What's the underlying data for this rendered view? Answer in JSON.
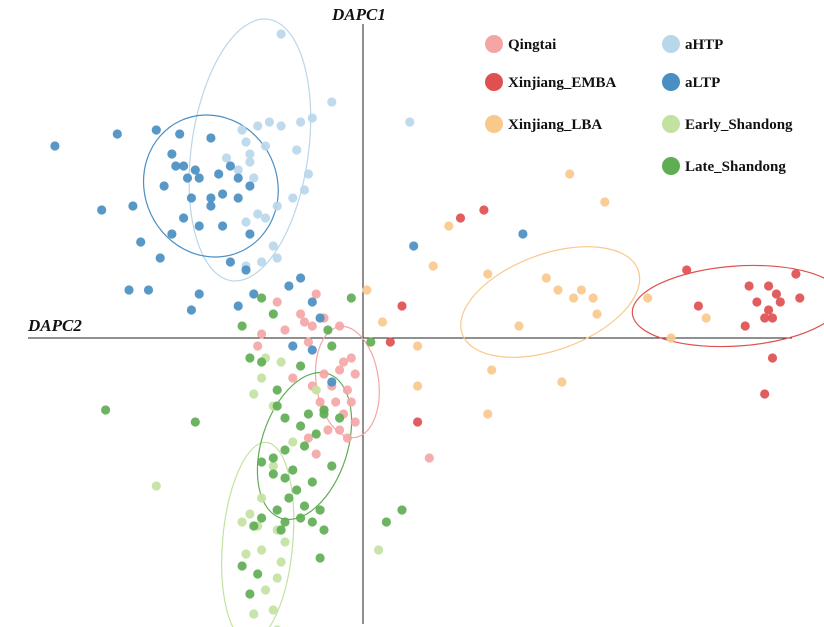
{
  "chart_data": {
    "type": "scatter",
    "xlabel": "DAPC2",
    "ylabel": "DAPC1",
    "xlim": [
      -10,
      12
    ],
    "ylim": [
      -8,
      8
    ],
    "grid": false,
    "legend_placement": "top-right",
    "series": [
      {
        "name": "Qingtai",
        "color": "#f4a6a6",
        "ellipse": {
          "cx": -0.4,
          "cy": -1.1,
          "rx": 0.8,
          "ry": 1.4,
          "angle": -8
        },
        "points": [
          [
            -2.2,
            0.9
          ],
          [
            -1.2,
            1.1
          ],
          [
            -1.6,
            0.6
          ],
          [
            -1.5,
            0.4
          ],
          [
            -1.3,
            0.3
          ],
          [
            -2.0,
            0.2
          ],
          [
            -1.0,
            0.5
          ],
          [
            -0.6,
            0.3
          ],
          [
            -2.7,
            -0.2
          ],
          [
            -1.4,
            -0.1
          ],
          [
            -0.3,
            -0.5
          ],
          [
            -0.5,
            -0.6
          ],
          [
            -0.6,
            -0.8
          ],
          [
            -1.0,
            -0.9
          ],
          [
            -1.3,
            -1.2
          ],
          [
            -0.8,
            -1.2
          ],
          [
            -0.4,
            -1.3
          ],
          [
            -0.3,
            -1.6
          ],
          [
            -0.7,
            -1.6
          ],
          [
            -1.0,
            -1.8
          ],
          [
            -0.5,
            -1.9
          ],
          [
            -0.2,
            -2.1
          ],
          [
            -0.6,
            -2.3
          ],
          [
            -0.9,
            -2.3
          ],
          [
            -1.4,
            -2.5
          ],
          [
            -0.4,
            -2.5
          ],
          [
            -2.6,
            0.1
          ],
          [
            -1.8,
            -1.0
          ],
          [
            -1.1,
            -1.6
          ],
          [
            1.7,
            -3.0
          ],
          [
            -0.2,
            -0.9
          ],
          [
            -1.2,
            -2.9
          ]
        ]
      },
      {
        "name": "Xinjiang_EMBA",
        "color": "#e05050",
        "ellipse": {
          "cx": 9.6,
          "cy": 0.8,
          "rx": 2.7,
          "ry": 1.0,
          "angle": -4
        },
        "points": [
          [
            2.5,
            3.0
          ],
          [
            3.1,
            3.2
          ],
          [
            1.0,
            0.8
          ],
          [
            8.3,
            1.7
          ],
          [
            9.9,
            1.3
          ],
          [
            10.4,
            1.3
          ],
          [
            10.6,
            1.1
          ],
          [
            10.1,
            0.9
          ],
          [
            10.7,
            0.9
          ],
          [
            10.4,
            0.7
          ],
          [
            10.3,
            0.5
          ],
          [
            10.5,
            0.5
          ],
          [
            8.6,
            0.8
          ],
          [
            9.8,
            0.3
          ],
          [
            11.1,
            1.6
          ],
          [
            11.2,
            1.0
          ],
          [
            10.5,
            -0.5
          ],
          [
            10.3,
            -1.4
          ],
          [
            1.4,
            -2.1
          ],
          [
            0.7,
            -0.1
          ]
        ]
      },
      {
        "name": "Xinjiang_LBA",
        "color": "#f9c98c",
        "ellipse": {
          "cx": 4.8,
          "cy": 0.9,
          "rx": 2.4,
          "ry": 1.2,
          "angle": -20
        },
        "points": [
          [
            5.3,
            4.1
          ],
          [
            6.2,
            3.4
          ],
          [
            2.2,
            2.8
          ],
          [
            1.8,
            1.8
          ],
          [
            3.2,
            1.6
          ],
          [
            4.7,
            1.5
          ],
          [
            5.0,
            1.2
          ],
          [
            5.6,
            1.2
          ],
          [
            5.9,
            1.0
          ],
          [
            5.4,
            1.0
          ],
          [
            6.0,
            0.6
          ],
          [
            4.0,
            0.3
          ],
          [
            7.3,
            1.0
          ],
          [
            8.8,
            0.5
          ],
          [
            7.9,
            0.0
          ],
          [
            0.1,
            1.2
          ],
          [
            1.4,
            -0.2
          ],
          [
            3.3,
            -0.8
          ],
          [
            5.1,
            -1.1
          ],
          [
            3.2,
            -1.9
          ],
          [
            1.4,
            -1.2
          ],
          [
            0.5,
            0.4
          ]
        ]
      },
      {
        "name": "aHTP",
        "color": "#b9d7ea",
        "ellipse": {
          "cx": -2.9,
          "cy": 4.7,
          "rx": 1.5,
          "ry": 3.3,
          "angle": 8
        },
        "points": [
          [
            -2.1,
            7.6
          ],
          [
            -0.8,
            5.9
          ],
          [
            -1.3,
            5.5
          ],
          [
            -1.6,
            5.4
          ],
          [
            -2.7,
            5.3
          ],
          [
            -2.4,
            5.4
          ],
          [
            -2.1,
            5.3
          ],
          [
            -3.1,
            5.2
          ],
          [
            -3.0,
            4.9
          ],
          [
            -2.5,
            4.8
          ],
          [
            -1.7,
            4.7
          ],
          [
            -3.5,
            4.5
          ],
          [
            -2.9,
            4.4
          ],
          [
            -3.2,
            4.2
          ],
          [
            -2.8,
            4.0
          ],
          [
            -1.4,
            4.1
          ],
          [
            -1.5,
            3.7
          ],
          [
            -1.8,
            3.5
          ],
          [
            -2.2,
            3.3
          ],
          [
            -2.7,
            3.1
          ],
          [
            -2.5,
            3.0
          ],
          [
            -3.0,
            2.9
          ],
          [
            -2.3,
            2.3
          ],
          [
            -2.2,
            2.0
          ],
          [
            -2.6,
            1.9
          ],
          [
            -3.0,
            1.8
          ],
          [
            1.2,
            5.4
          ],
          [
            -2.9,
            4.6
          ]
        ]
      },
      {
        "name": "aLTP",
        "color": "#4a8fc2",
        "ellipse": {
          "cx": -3.9,
          "cy": 3.8,
          "rx": 1.7,
          "ry": 1.8,
          "angle": -25
        },
        "points": [
          [
            -7.9,
            4.8
          ],
          [
            -6.3,
            5.1
          ],
          [
            -5.3,
            5.2
          ],
          [
            -4.7,
            5.1
          ],
          [
            -3.9,
            5.0
          ],
          [
            -4.9,
            4.6
          ],
          [
            -4.6,
            4.3
          ],
          [
            -4.3,
            4.2
          ],
          [
            -4.8,
            4.3
          ],
          [
            -4.5,
            4.0
          ],
          [
            -4.2,
            4.0
          ],
          [
            -3.7,
            4.1
          ],
          [
            -3.4,
            4.3
          ],
          [
            -3.2,
            4.0
          ],
          [
            -2.9,
            3.8
          ],
          [
            -3.6,
            3.6
          ],
          [
            -3.2,
            3.5
          ],
          [
            -3.9,
            3.5
          ],
          [
            -4.4,
            3.5
          ],
          [
            -5.1,
            3.8
          ],
          [
            -5.9,
            3.3
          ],
          [
            -6.7,
            3.2
          ],
          [
            -3.9,
            3.3
          ],
          [
            -4.6,
            3.0
          ],
          [
            -4.2,
            2.8
          ],
          [
            -2.9,
            2.6
          ],
          [
            -5.7,
            2.4
          ],
          [
            -4.9,
            2.6
          ],
          [
            -3.6,
            2.8
          ],
          [
            -5.2,
            2.0
          ],
          [
            -3.4,
            1.9
          ],
          [
            -3.0,
            1.7
          ],
          [
            -1.6,
            1.5
          ],
          [
            -1.9,
            1.3
          ],
          [
            -6.0,
            1.2
          ],
          [
            -5.5,
            1.2
          ],
          [
            -4.2,
            1.1
          ],
          [
            -2.8,
            1.1
          ],
          [
            -3.2,
            0.8
          ],
          [
            -4.4,
            0.7
          ],
          [
            -1.3,
            0.9
          ],
          [
            -1.1,
            0.5
          ],
          [
            1.3,
            2.3
          ],
          [
            4.1,
            2.6
          ],
          [
            -1.3,
            -0.3
          ],
          [
            -1.8,
            -0.2
          ],
          [
            -0.8,
            -1.1
          ]
        ]
      },
      {
        "name": "Early_Shandong",
        "color": "#c3e2a2",
        "ellipse": {
          "cx": -2.7,
          "cy": -5.1,
          "rx": 0.9,
          "ry": 2.5,
          "angle": 5
        },
        "points": [
          [
            -2.5,
            -0.5
          ],
          [
            -2.1,
            -0.6
          ],
          [
            -2.6,
            -1.0
          ],
          [
            -2.8,
            -1.4
          ],
          [
            -1.2,
            -1.3
          ],
          [
            -2.3,
            -1.7
          ],
          [
            -1.8,
            -2.6
          ],
          [
            -2.3,
            -3.2
          ],
          [
            -5.3,
            -3.7
          ],
          [
            -2.6,
            -4.0
          ],
          [
            -2.9,
            -4.4
          ],
          [
            -2.7,
            -4.7
          ],
          [
            -3.1,
            -4.6
          ],
          [
            -2.2,
            -4.8
          ],
          [
            -2.0,
            -5.1
          ],
          [
            -2.6,
            -5.3
          ],
          [
            -3.0,
            -5.4
          ],
          [
            -2.1,
            -5.6
          ],
          [
            -2.2,
            -6.0
          ],
          [
            -2.5,
            -6.3
          ],
          [
            -2.3,
            -6.8
          ],
          [
            -2.8,
            -6.9
          ],
          [
            -3.0,
            -7.4
          ],
          [
            -2.7,
            -7.4
          ],
          [
            -2.2,
            -7.3
          ],
          [
            0.4,
            -5.3
          ]
        ]
      },
      {
        "name": "Late_Shandong",
        "color": "#5fae54",
        "ellipse": {
          "cx": -1.5,
          "cy": -2.7,
          "rx": 1.1,
          "ry": 1.9,
          "angle": 18
        },
        "points": [
          [
            -2.6,
            1.0
          ],
          [
            -0.3,
            1.0
          ],
          [
            -2.3,
            0.6
          ],
          [
            -3.1,
            0.3
          ],
          [
            -0.9,
            0.2
          ],
          [
            -0.8,
            -0.2
          ],
          [
            0.2,
            -0.1
          ],
          [
            -2.9,
            -0.5
          ],
          [
            -2.6,
            -0.6
          ],
          [
            -1.6,
            -0.7
          ],
          [
            -2.2,
            -1.3
          ],
          [
            -2.2,
            -1.7
          ],
          [
            -2.0,
            -2.0
          ],
          [
            -1.4,
            -1.9
          ],
          [
            -1.0,
            -1.8
          ],
          [
            -0.6,
            -2.0
          ],
          [
            -1.6,
            -2.2
          ],
          [
            -1.2,
            -2.4
          ],
          [
            -1.5,
            -2.7
          ],
          [
            -2.0,
            -2.8
          ],
          [
            -2.3,
            -3.0
          ],
          [
            -2.6,
            -3.1
          ],
          [
            -0.8,
            -3.2
          ],
          [
            -2.3,
            -3.4
          ],
          [
            -1.8,
            -3.3
          ],
          [
            -2.0,
            -3.5
          ],
          [
            -1.3,
            -3.6
          ],
          [
            -1.7,
            -3.8
          ],
          [
            -1.9,
            -4.0
          ],
          [
            -2.2,
            -4.3
          ],
          [
            -1.6,
            -4.5
          ],
          [
            -2.6,
            -4.5
          ],
          [
            -2.8,
            -4.7
          ],
          [
            -2.1,
            -4.8
          ],
          [
            -1.3,
            -4.6
          ],
          [
            -1.0,
            -4.8
          ],
          [
            -1.1,
            -4.3
          ],
          [
            -1.5,
            -4.2
          ],
          [
            1.0,
            -4.3
          ],
          [
            0.6,
            -4.6
          ],
          [
            -2.0,
            -4.6
          ],
          [
            -3.1,
            -5.7
          ],
          [
            -2.7,
            -5.9
          ],
          [
            -1.1,
            -5.5
          ],
          [
            -2.9,
            -6.4
          ],
          [
            -6.6,
            -1.8
          ],
          [
            -4.3,
            -2.1
          ],
          [
            -1.0,
            -1.9
          ]
        ]
      }
    ]
  }
}
